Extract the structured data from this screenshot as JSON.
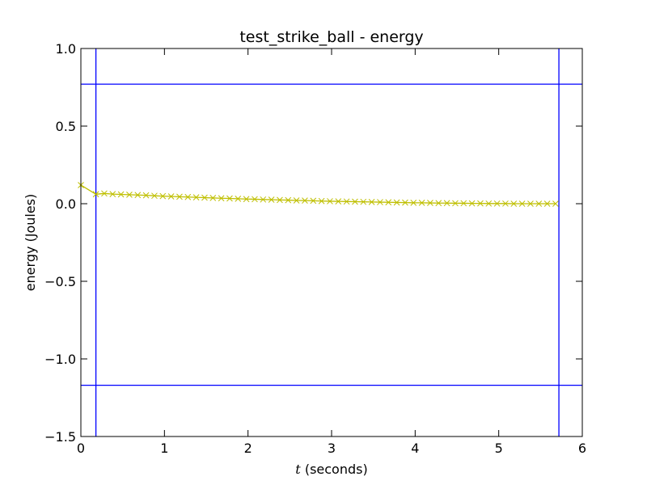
{
  "chart_data": {
    "type": "line",
    "title": "test_strike_ball - energy",
    "xlabel_var": "t",
    "xlabel_rest": " (seconds)",
    "ylabel": "energy (Joules)",
    "xlim": [
      0,
      6
    ],
    "ylim": [
      -1.5,
      1.0
    ],
    "xticks": [
      0,
      1,
      2,
      3,
      4,
      5,
      6
    ],
    "xtick_labels": [
      "0",
      "1",
      "2",
      "3",
      "4",
      "5",
      "6"
    ],
    "yticks": [
      1.0,
      0.5,
      0.0,
      -0.5,
      -1.0,
      -1.5
    ],
    "ytick_labels": [
      "1.0",
      "0.5",
      "0.0",
      "−0.5",
      "−1.0",
      "−1.5"
    ],
    "grid": false,
    "reference_lines": {
      "vertical_x": [
        0.18,
        5.72
      ],
      "horizontal_y": [
        0.77,
        -1.17
      ],
      "color": "#0000ff"
    },
    "series": [
      {
        "color": "#bfbf00",
        "marker": "x",
        "x": [
          0.0,
          0.18,
          0.28,
          0.38,
          0.48,
          0.58,
          0.68,
          0.78,
          0.88,
          0.98,
          1.08,
          1.18,
          1.28,
          1.38,
          1.48,
          1.58,
          1.68,
          1.78,
          1.88,
          1.98,
          2.08,
          2.18,
          2.28,
          2.38,
          2.48,
          2.58,
          2.68,
          2.78,
          2.88,
          2.98,
          3.08,
          3.18,
          3.28,
          3.38,
          3.48,
          3.58,
          3.68,
          3.78,
          3.88,
          3.98,
          4.08,
          4.18,
          4.28,
          4.38,
          4.48,
          4.58,
          4.68,
          4.78,
          4.88,
          4.98,
          5.08,
          5.18,
          5.28,
          5.38,
          5.48,
          5.58,
          5.68
        ],
        "y": [
          0.12,
          0.061,
          0.066,
          0.062,
          0.06,
          0.058,
          0.056,
          0.054,
          0.051,
          0.049,
          0.047,
          0.045,
          0.043,
          0.041,
          0.039,
          0.037,
          0.035,
          0.034,
          0.032,
          0.03,
          0.029,
          0.027,
          0.026,
          0.024,
          0.023,
          0.021,
          0.02,
          0.019,
          0.017,
          0.016,
          0.015,
          0.014,
          0.013,
          0.012,
          0.011,
          0.01,
          0.009,
          0.008,
          0.007,
          0.006,
          0.006,
          0.005,
          0.004,
          0.004,
          0.003,
          0.003,
          0.002,
          0.002,
          0.001,
          0.001,
          0.001,
          0.0,
          0.0,
          0.0,
          0.0,
          0.0,
          0.0
        ]
      }
    ]
  }
}
